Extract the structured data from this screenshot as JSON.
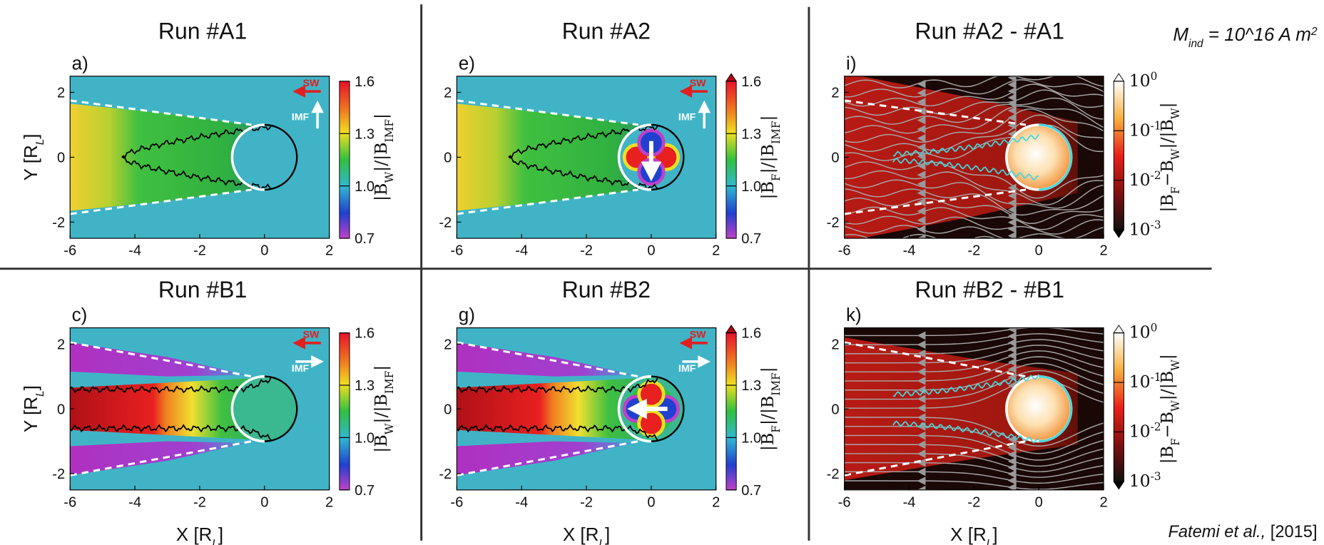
{
  "note": {
    "symbol": "M",
    "subscript": "ind",
    "text": " = 10^16 A m",
    "superscript": "2"
  },
  "citation": {
    "authors": "Fatemi et al.,",
    "year": " [2015]"
  },
  "x_label": {
    "text": "X [R",
    "subscript": "L",
    "end": "]"
  },
  "y_label": {
    "text": "Y [R",
    "subscript": "L",
    "end": "]"
  },
  "xlim": [
    -6,
    2
  ],
  "ylim": [
    -2.5,
    2.5
  ],
  "xticks": [
    -6,
    -4,
    -2,
    0,
    2
  ],
  "yticks": [
    -2,
    0,
    2
  ],
  "legend": {
    "sw": "SW",
    "imf": "IMF"
  },
  "cbar": {
    "lim": [
      0.7,
      1.6
    ],
    "ticks": [
      0.7,
      {
        "value": 1,
        "label": "1.0"
      },
      1.3,
      1.6
    ]
  },
  "cbar_log": {
    "lim": [
      0.001,
      1
    ],
    "ticks": [
      {
        "value": 1,
        "label": "10",
        "exponent": "0"
      },
      {
        "value": 0.1,
        "label": "10",
        "exponent": "-1"
      },
      {
        "value": 0.01,
        "label": "10",
        "exponent": "-2"
      },
      {
        "value": 0.001,
        "label": "10",
        "exponent": "-3"
      }
    ]
  },
  "panels": [
    {
      "title": "Run #A1",
      "letter": "a)",
      "log_colorbar": false,
      "colorbar_label": [
        {
          "t": "|B",
          "sub": false
        },
        {
          "t": "W",
          "sub": true
        },
        {
          "t": "|/|B",
          "sub": false
        },
        {
          "t": "IMF",
          "sub": true
        },
        {
          "t": "|",
          "sub": false
        }
      ]
    },
    {
      "title": "Run #A2",
      "letter": "e)",
      "log_colorbar": false,
      "colorbar_label": [
        {
          "t": "|B",
          "sub": false
        },
        {
          "t": "F",
          "sub": true
        },
        {
          "t": "|/|B",
          "sub": false
        },
        {
          "t": "IMF",
          "sub": true
        },
        {
          "t": "|",
          "sub": false
        }
      ]
    },
    {
      "title": "Run #A2 - #A1",
      "letter": "i)",
      "log_colorbar": true,
      "colorbar_label": [
        {
          "t": "|B",
          "sub": false
        },
        {
          "t": "F",
          "sub": true
        },
        {
          "t": "−B",
          "sub": false
        },
        {
          "t": "W",
          "sub": true
        },
        {
          "t": "|/|B",
          "sub": false
        },
        {
          "t": "W",
          "sub": true
        },
        {
          "t": "|",
          "sub": false
        }
      ]
    },
    {
      "title": "Run #B1",
      "letter": "c)",
      "log_colorbar": false,
      "colorbar_label": [
        {
          "t": "|B",
          "sub": false
        },
        {
          "t": "W",
          "sub": true
        },
        {
          "t": "|/|B",
          "sub": false
        },
        {
          "t": "IMF",
          "sub": true
        },
        {
          "t": "|",
          "sub": false
        }
      ]
    },
    {
      "title": "Run #B2",
      "letter": "g)",
      "log_colorbar": false,
      "colorbar_label": [
        {
          "t": "|B",
          "sub": false
        },
        {
          "t": "F",
          "sub": true
        },
        {
          "t": "|/|B",
          "sub": false
        },
        {
          "t": "IMF",
          "sub": true
        },
        {
          "t": "|",
          "sub": false
        }
      ]
    },
    {
      "title": "Run #B2 - #B1",
      "letter": "k)",
      "log_colorbar": true,
      "colorbar_label": [
        {
          "t": "|B",
          "sub": false
        },
        {
          "t": "F",
          "sub": true
        },
        {
          "t": "−B",
          "sub": false
        },
        {
          "t": "W",
          "sub": true
        },
        {
          "t": "|/|B",
          "sub": false
        },
        {
          "t": "W",
          "sub": true
        },
        {
          "t": "|",
          "sub": false
        }
      ]
    }
  ]
}
